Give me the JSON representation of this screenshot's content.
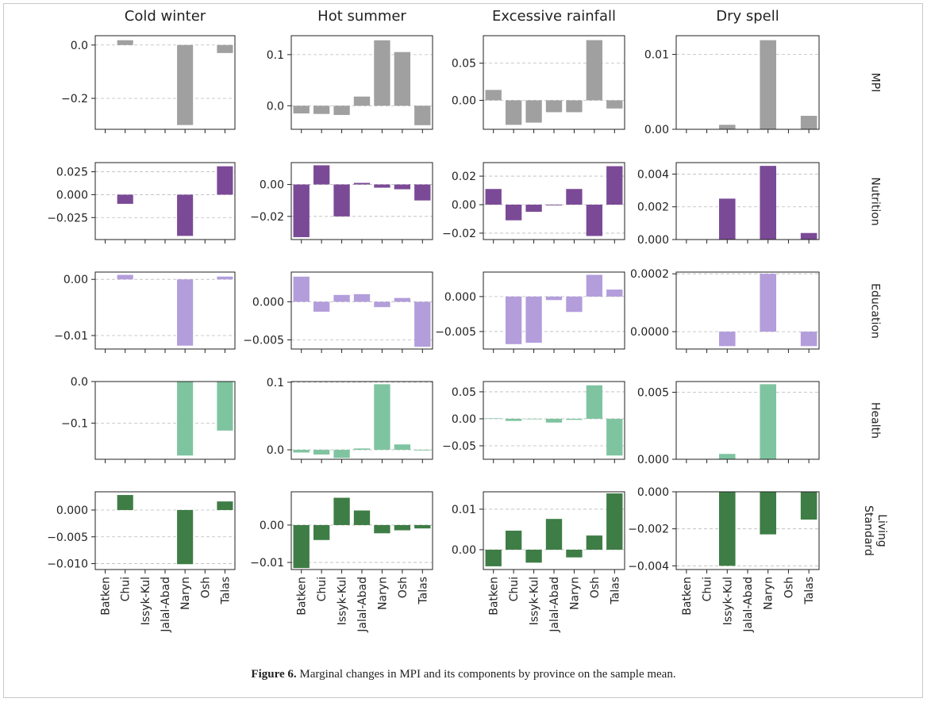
{
  "chart_data": [
    {
      "type": "bar",
      "title": "Cold winter",
      "color": "#a0a0a0",
      "values": [
        0,
        0.018,
        0,
        0,
        -0.3,
        0,
        -0.03
      ],
      "ylim": [
        -0.316,
        0.035
      ],
      "yticks": [
        {
          "value": -0.2,
          "label": "−0.2"
        },
        {
          "value": 0,
          "label": "0.0"
        }
      ],
      "grid": true
    },
    {
      "type": "bar",
      "title": "Hot summer",
      "color": "#a0a0a0",
      "values": [
        -0.015,
        -0.016,
        -0.018,
        0.018,
        0.128,
        0.105,
        -0.038
      ],
      "ylim": [
        -0.046,
        0.137
      ],
      "yticks": [
        {
          "value": 0,
          "label": "0.0"
        },
        0.1
      ],
      "grid": true
    },
    {
      "type": "bar",
      "title": "Excessive rainfall",
      "color": "#a0a0a0",
      "values": [
        0.014,
        -0.033,
        -0.03,
        -0.016,
        -0.016,
        0.081,
        -0.011
      ],
      "ylim": [
        -0.039,
        0.087
      ],
      "yticks": [
        {
          "value": 0,
          "label": "0.00"
        },
        0.05
      ],
      "grid": true
    },
    {
      "type": "bar",
      "title": "Dry spell",
      "row_label": "MPI",
      "color": "#a0a0a0",
      "values": [
        0,
        0,
        0.0006,
        0,
        0.0119,
        0,
        0.0018
      ],
      "ylim": [
        0,
        0.0125
      ],
      "yticks": [
        {
          "value": 0,
          "label": "0.00"
        },
        0.01
      ],
      "grid": true
    },
    {
      "type": "bar",
      "color": "#7b4a96",
      "values": [
        0,
        -0.01,
        0,
        0,
        -0.045,
        0,
        0.031
      ],
      "ylim": [
        -0.049,
        0.035
      ],
      "yticks": [
        {
          "value": -0.025,
          "label": "−0.025"
        },
        {
          "value": 0,
          "label": "0.000"
        },
        0.025
      ],
      "grid": true
    },
    {
      "type": "bar",
      "color": "#7b4a96",
      "values": [
        -0.033,
        0.012,
        -0.02,
        0.001,
        -0.002,
        -0.003,
        -0.01
      ],
      "ylim": [
        -0.0345,
        0.0137
      ],
      "yticks": [
        {
          "value": -0.02,
          "label": "−0.02"
        },
        {
          "value": 0,
          "label": "0.00"
        }
      ],
      "grid": true
    },
    {
      "type": "bar",
      "color": "#7b4a96",
      "values": [
        0.011,
        -0.011,
        -0.005,
        -0.0005,
        0.011,
        -0.022,
        0.027
      ],
      "ylim": [
        -0.0245,
        0.0295
      ],
      "yticks": [
        {
          "value": -0.02,
          "label": "−0.02"
        },
        {
          "value": 0,
          "label": "0.00"
        },
        0.02
      ],
      "grid": true
    },
    {
      "type": "bar",
      "row_label": "Nutrition",
      "color": "#7b4a96",
      "values": [
        0,
        0,
        0.0025,
        0,
        0.0045,
        0,
        0.0004
      ],
      "ylim": [
        0,
        0.0047
      ],
      "yticks": [
        {
          "value": 0,
          "label": "0.000"
        },
        0.002,
        0.004
      ],
      "grid": true
    },
    {
      "type": "bar",
      "color": "#b39ddb",
      "values": [
        0,
        0.0008,
        0,
        0,
        -0.0118,
        0,
        0.0005
      ],
      "ylim": [
        -0.0124,
        0.0013
      ],
      "yticks": [
        {
          "value": -0.01,
          "label": "−0.01"
        },
        {
          "value": 0,
          "label": "0.00"
        }
      ],
      "grid": true
    },
    {
      "type": "bar",
      "color": "#b39ddb",
      "values": [
        0.0033,
        -0.0013,
        0.0009,
        0.001,
        -0.0007,
        0.0005,
        -0.0059
      ],
      "ylim": [
        -0.0062,
        0.0039
      ],
      "yticks": [
        {
          "value": -0.005,
          "label": "−0.005"
        },
        {
          "value": 0,
          "label": "0.000"
        }
      ],
      "grid": true
    },
    {
      "type": "bar",
      "color": "#b39ddb",
      "values": [
        0,
        -0.0068,
        -0.0066,
        -0.0005,
        -0.0022,
        0.0031,
        0.001
      ],
      "ylim": [
        -0.0075,
        0.0035
      ],
      "yticks": [
        {
          "value": -0.005,
          "label": "−0.005"
        },
        {
          "value": 0,
          "label": "0.000"
        }
      ],
      "grid": true
    },
    {
      "type": "bar",
      "row_label": "Education",
      "color": "#b39ddb",
      "values": [
        0,
        0,
        -5e-05,
        0,
        0.0002,
        0,
        -5e-05
      ],
      "ylim": [
        -6e-05,
        0.000206
      ],
      "yticks": [
        {
          "value": 0,
          "label": "0.0000"
        },
        0.0002
      ],
      "grid": true
    },
    {
      "type": "bar",
      "color": "#7fc4a0",
      "values": [
        0,
        0,
        0,
        0,
        -0.178,
        0,
        -0.118
      ],
      "ylim": [
        -0.187,
        0
      ],
      "yticks": [
        {
          "value": -0.1,
          "label": "−0.1"
        },
        {
          "value": 0,
          "label": "0.0"
        }
      ],
      "grid": true
    },
    {
      "type": "bar",
      "color": "#7fc4a0",
      "values": [
        -0.004,
        -0.007,
        -0.012,
        0.002,
        0.097,
        0.008,
        -0.001
      ],
      "ylim": [
        -0.014,
        0.101
      ],
      "yticks": [
        {
          "value": 0,
          "label": "0.0"
        },
        0.1
      ],
      "grid": true
    },
    {
      "type": "bar",
      "color": "#7fc4a0",
      "values": [
        0.001,
        -0.004,
        -0.001,
        -0.007,
        -0.002,
        0.062,
        -0.068
      ],
      "ylim": [
        -0.075,
        0.069
      ],
      "yticks": [
        {
          "value": -0.05,
          "label": "−0.05"
        },
        {
          "value": 0,
          "label": "0.00"
        },
        0.05
      ],
      "grid": true
    },
    {
      "type": "bar",
      "row_label": "Health",
      "color": "#7fc4a0",
      "values": [
        0,
        0,
        0.0004,
        0,
        0.0056,
        0,
        0
      ],
      "ylim": [
        0,
        0.0058
      ],
      "yticks": [
        {
          "value": 0,
          "label": "0.000"
        },
        0.005
      ],
      "grid": true
    },
    {
      "type": "bar",
      "categories": [
        "Batken",
        "Chui",
        "Issyk-Kul",
        "Jalal-Abad",
        "Naryn",
        "Osh",
        "Talas"
      ],
      "color": "#3e7d45",
      "values": [
        0,
        0.0028,
        0,
        0,
        -0.0101,
        0,
        0.0016
      ],
      "ylim": [
        -0.0111,
        0.0034
      ],
      "yticks": [
        {
          "value": -0.01,
          "label": "−0.010"
        },
        {
          "value": -0.005,
          "label": "−0.005"
        },
        {
          "value": 0,
          "label": "0.000"
        }
      ],
      "grid": true
    },
    {
      "type": "bar",
      "categories": [
        "Batken",
        "Chui",
        "Issyk-Kul",
        "Jalal-Abad",
        "Naryn",
        "Osh",
        "Talas"
      ],
      "color": "#3e7d45",
      "values": [
        -0.0115,
        -0.004,
        0.0073,
        0.0039,
        -0.0022,
        -0.0014,
        -0.0009
      ],
      "ylim": [
        -0.0119,
        0.0089
      ],
      "yticks": [
        {
          "value": -0.01,
          "label": "−0.01"
        },
        {
          "value": 0,
          "label": "0.00"
        }
      ],
      "grid": true
    },
    {
      "type": "bar",
      "categories": [
        "Batken",
        "Chui",
        "Issyk-Kul",
        "Jalal-Abad",
        "Naryn",
        "Osh",
        "Talas"
      ],
      "color": "#3e7d45",
      "values": [
        -0.0041,
        0.0047,
        -0.0032,
        0.0076,
        -0.0019,
        0.0035,
        0.0139
      ],
      "ylim": [
        -0.0049,
        0.0143
      ],
      "yticks": [
        {
          "value": 0,
          "label": "0.00"
        },
        0.01
      ],
      "grid": true
    },
    {
      "type": "bar",
      "row_label": "Living Standard",
      "categories": [
        "Batken",
        "Chui",
        "Issyk-Kul",
        "Jalal-Abad",
        "Naryn",
        "Osh",
        "Talas"
      ],
      "color": "#3e7d45",
      "values": [
        0,
        0,
        -0.004,
        0,
        -0.0023,
        0,
        -0.0015
      ],
      "ylim": [
        -0.0042,
        0
      ],
      "yticks": [
        {
          "value": -0.004,
          "label": "−0.004"
        },
        {
          "value": -0.002,
          "label": "−0.002"
        },
        {
          "value": 0,
          "label": "0.000"
        }
      ],
      "grid": true
    }
  ],
  "caption": {
    "label": "Figure 6.",
    "text": "Marginal changes in MPI and its components by province on the sample mean."
  }
}
